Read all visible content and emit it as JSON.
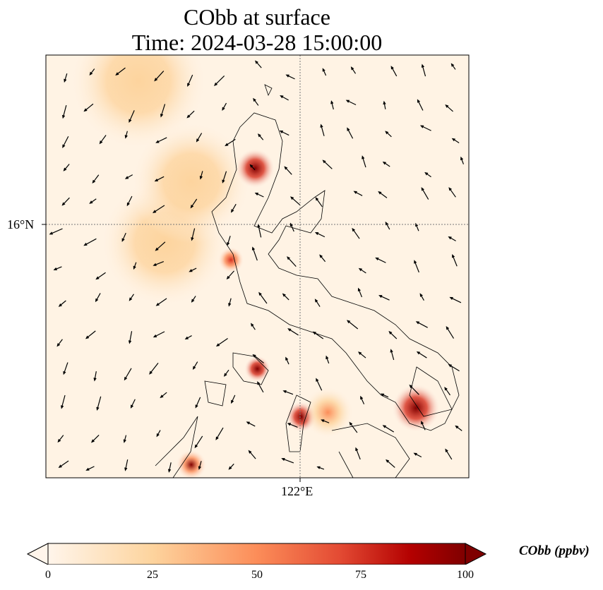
{
  "title_line1": "CObb at surface",
  "title_line2": "Time: 2024-03-28 15:00:00",
  "chart_data": {
    "type": "heatmap",
    "variable": "CObb",
    "units": "ppbv",
    "lon_range": [
      116.2,
      125.8
    ],
    "lat_range": [
      10.2,
      19.9
    ],
    "gridlines": {
      "lon": 122,
      "lat": 16
    },
    "xtick_labels": [
      "122°E"
    ],
    "ytick_labels": [
      "16°N"
    ],
    "hotspots": [
      {
        "lon": 118.3,
        "lat": 19.3,
        "value": 22,
        "spread": 1.6
      },
      {
        "lon": 118.9,
        "lat": 15.6,
        "value": 28,
        "spread": 1.5
      },
      {
        "lon": 119.5,
        "lat": 17.0,
        "value": 20,
        "spread": 1.4
      },
      {
        "lon": 120.95,
        "lat": 17.3,
        "value": 100,
        "spread": 0.45
      },
      {
        "lon": 120.4,
        "lat": 15.2,
        "value": 55,
        "spread": 0.3
      },
      {
        "lon": 121.0,
        "lat": 12.7,
        "value": 100,
        "spread": 0.3
      },
      {
        "lon": 122.0,
        "lat": 11.6,
        "value": 95,
        "spread": 0.35
      },
      {
        "lon": 122.6,
        "lat": 11.7,
        "value": 40,
        "spread": 0.6
      },
      {
        "lon": 124.6,
        "lat": 11.8,
        "value": 100,
        "spread": 0.55
      },
      {
        "lon": 119.5,
        "lat": 10.5,
        "value": 90,
        "spread": 0.35
      }
    ],
    "colorbar": {
      "label": "CObb (ppbv)",
      "min": 0,
      "max": 100,
      "ticks": [
        "0",
        "25",
        "50",
        "75",
        "100"
      ],
      "extend": "both",
      "colormap": [
        "#fff5eb",
        "#fdd49e",
        "#fc8d59",
        "#d7301f",
        "#b30000",
        "#7f0000"
      ]
    }
  }
}
